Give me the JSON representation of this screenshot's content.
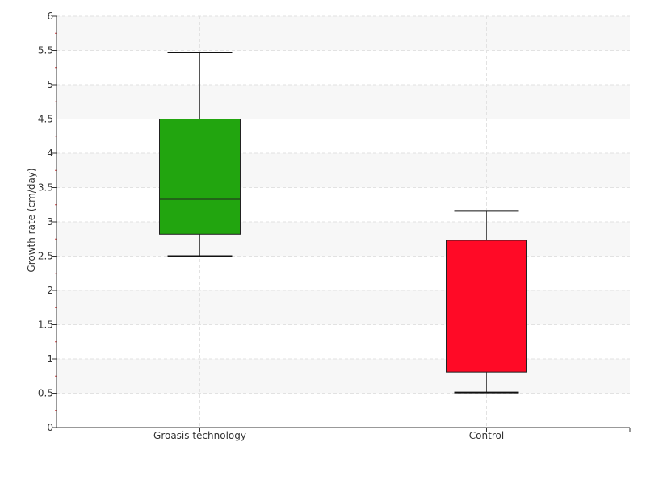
{
  "chart_data": {
    "type": "box",
    "ylabel": "Growth rate (cm/day)",
    "xlabel": "",
    "ylim": [
      0,
      6
    ],
    "yticks": [
      "0",
      "0.5",
      "1",
      "1.5",
      "2",
      "2.5",
      "3",
      "3.5",
      "4",
      "4.5",
      "5",
      "5.5",
      "6"
    ],
    "grid": true,
    "categories": [
      "Groasis technology",
      "Control"
    ],
    "series": [
      {
        "category": "Groasis technology",
        "color": "#22a50f",
        "min": 2.5,
        "q1": 2.82,
        "median": 3.33,
        "q3": 4.5,
        "max": 5.47
      },
      {
        "category": "Control",
        "color": "#ff0a26",
        "min": 0.51,
        "q1": 0.81,
        "median": 1.7,
        "q3": 2.73,
        "max": 3.16
      }
    ]
  }
}
